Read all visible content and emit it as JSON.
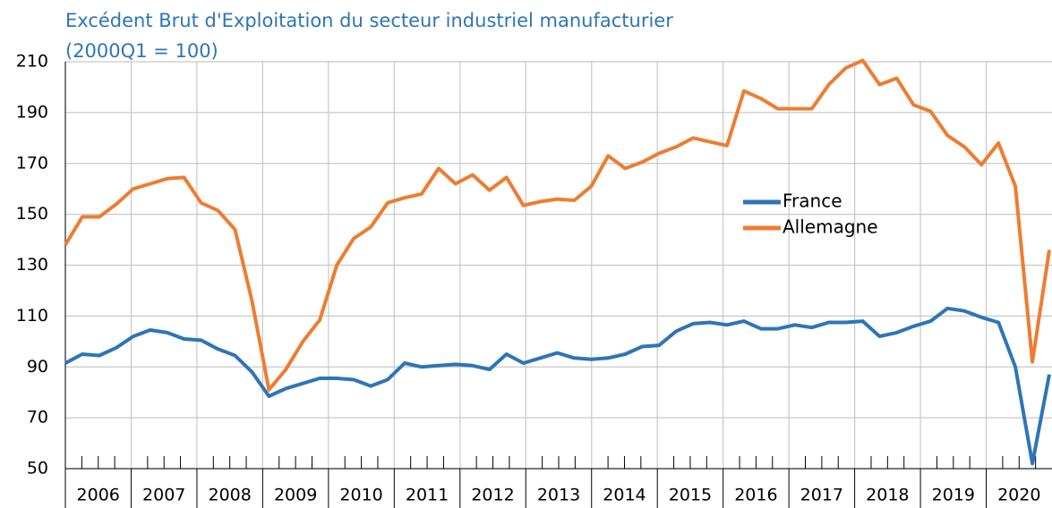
{
  "chart_data": {
    "type": "line",
    "title": "Excédent Brut d'Exploitation du secteur industriel manufacturier",
    "subtitle": "(2000Q1 = 100)",
    "years": [
      "2006",
      "2007",
      "2008",
      "2009",
      "2010",
      "2011",
      "2012",
      "2013",
      "2014",
      "2015",
      "2016",
      "2017",
      "2018",
      "2019",
      "2020"
    ],
    "ylim": [
      50,
      210
    ],
    "yticks": [
      50,
      70,
      90,
      110,
      130,
      150,
      170,
      190,
      210
    ],
    "grid": true,
    "series": [
      {
        "name": "France",
        "color": "#2e75b6",
        "values": [
          91.5,
          95,
          94.5,
          97.5,
          102,
          104.5,
          103.5,
          101,
          100.5,
          97,
          94.5,
          88,
          78.5,
          81.5,
          83.5,
          85.5,
          85.5,
          85,
          82.5,
          85,
          91.5,
          90,
          90.5,
          91,
          90.5,
          89,
          95,
          91.5,
          93.5,
          95.5,
          93.5,
          93,
          93.5,
          95,
          98,
          98.5,
          104,
          107,
          107.5,
          106.5,
          108,
          105,
          105,
          106.5,
          105.5,
          107.5,
          107.5,
          108,
          102,
          103.5,
          106,
          108,
          113,
          112,
          109.5,
          107.5,
          90,
          52,
          87
        ]
      },
      {
        "name": "Allemagne",
        "color": "#ed7d31",
        "values": [
          138,
          149,
          149,
          154,
          160,
          162,
          164,
          164.5,
          154.5,
          151.5,
          144,
          116,
          81,
          89,
          100,
          108.5,
          130,
          140.5,
          145,
          154.5,
          156.5,
          158,
          168,
          162,
          165.5,
          159.5,
          164.5,
          153.5,
          155,
          156,
          155.5,
          161,
          173,
          168,
          170.5,
          174,
          176.5,
          180,
          178.5,
          177,
          198.5,
          195.5,
          191.5,
          191.5,
          191.5,
          201,
          207.5,
          210.5,
          201,
          203.5,
          193,
          190.5,
          181,
          176.5,
          169.5,
          178,
          161,
          92,
          136
        ]
      }
    ]
  }
}
